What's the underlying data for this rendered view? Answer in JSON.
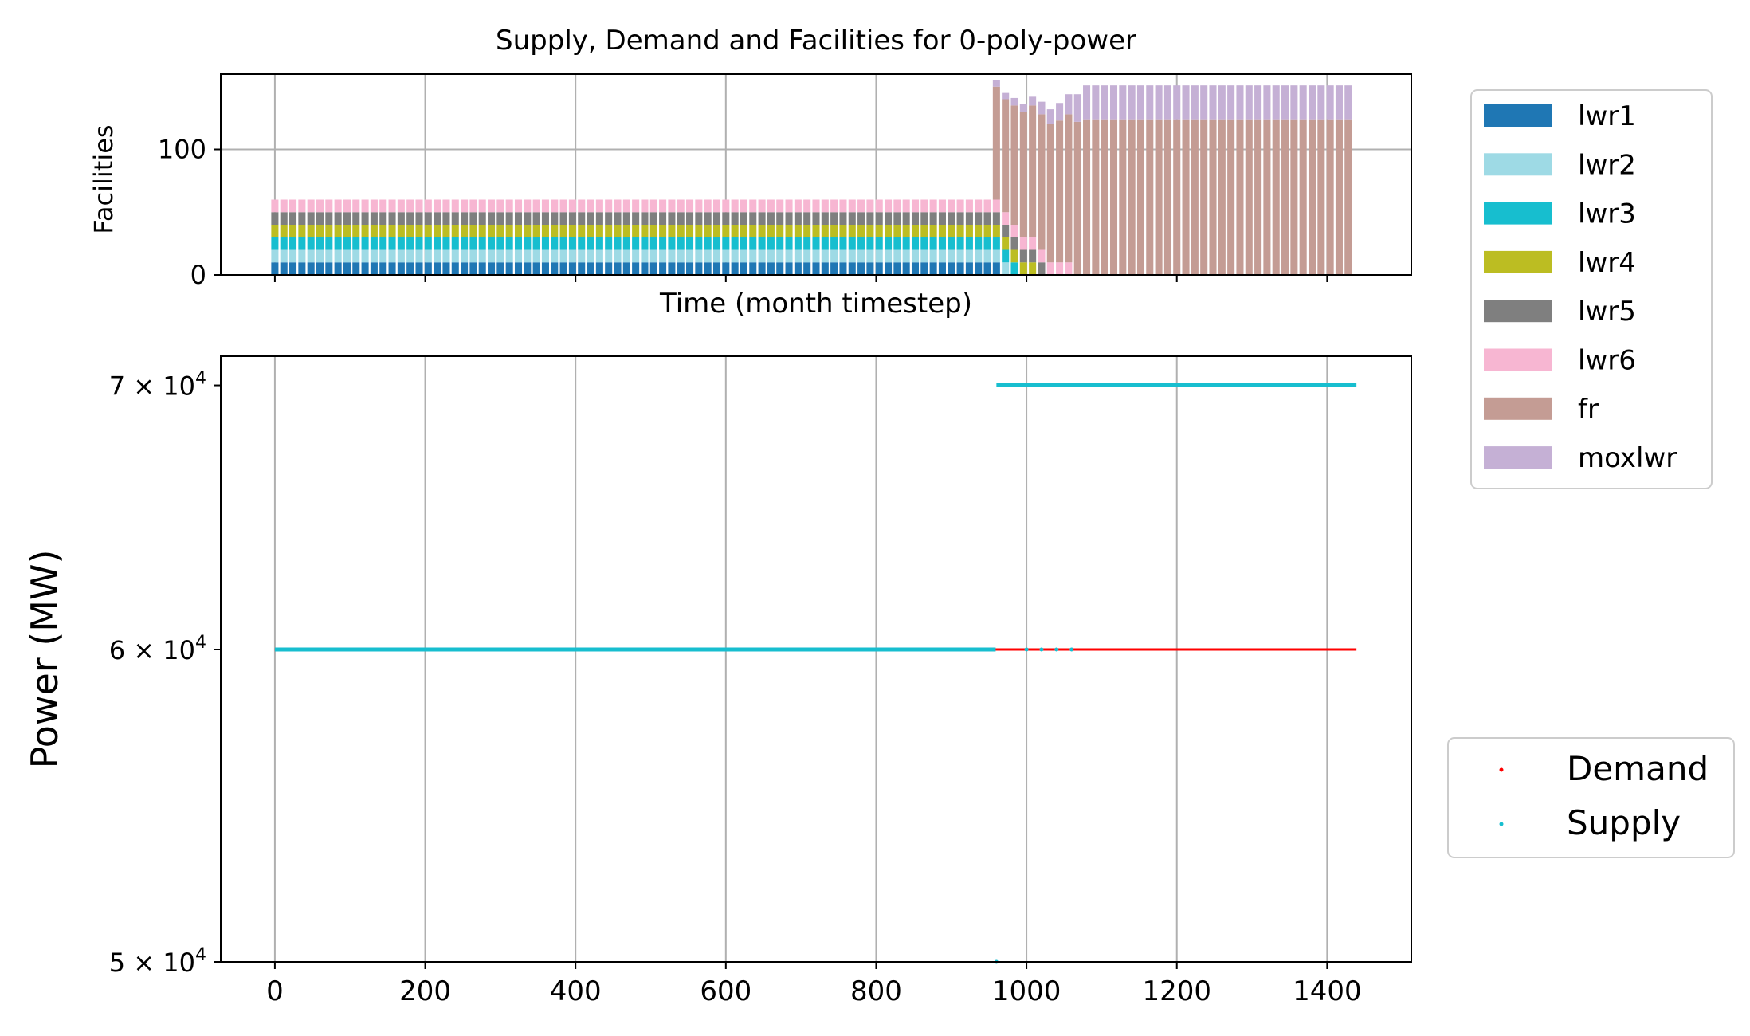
{
  "chart_data": [
    {
      "type": "bar",
      "stacked": true,
      "title": "Supply, Demand and Facilities for 0-poly-power",
      "xlabel": "Time (month timestep)",
      "ylabel": "Facilities",
      "xlim": [
        -72,
        1512
      ],
      "ylim": [
        0,
        160
      ],
      "yticks": [
        0,
        100
      ],
      "ytick_labels": [
        "0",
        "100"
      ],
      "xticks": [
        0,
        200,
        400,
        600,
        800,
        1000,
        1200,
        1400
      ],
      "grid": true,
      "legend_position": "outside-right",
      "x_sampling_note": "bars every 12 months",
      "bar_x_start": 0,
      "bar_x_step": 12,
      "bar_x_end": 1428,
      "series": [
        {
          "name": "lwr1",
          "color": "#1f77b4",
          "points": [
            [
              0,
              10
            ],
            [
              948,
              10
            ],
            [
              960,
              10
            ],
            [
              972,
              0
            ]
          ]
        },
        {
          "name": "lwr2",
          "color": "#9edae5",
          "points": [
            [
              0,
              10
            ],
            [
              948,
              10
            ],
            [
              960,
              10
            ],
            [
              972,
              10
            ],
            [
              984,
              0
            ]
          ]
        },
        {
          "name": "lwr3",
          "color": "#17becf",
          "points": [
            [
              0,
              10
            ],
            [
              948,
              10
            ],
            [
              960,
              10
            ],
            [
              972,
              10
            ],
            [
              984,
              10
            ],
            [
              996,
              0
            ]
          ]
        },
        {
          "name": "lwr4",
          "color": "#bcbd22",
          "points": [
            [
              0,
              10
            ],
            [
              948,
              10
            ],
            [
              960,
              10
            ],
            [
              972,
              10
            ],
            [
              984,
              10
            ],
            [
              996,
              10
            ],
            [
              1008,
              10
            ],
            [
              1020,
              0
            ]
          ]
        },
        {
          "name": "lwr5",
          "color": "#7f7f7f",
          "points": [
            [
              0,
              10
            ],
            [
              948,
              10
            ],
            [
              960,
              10
            ],
            [
              972,
              10
            ],
            [
              984,
              10
            ],
            [
              996,
              10
            ],
            [
              1008,
              10
            ],
            [
              1020,
              10
            ],
            [
              1032,
              0
            ]
          ]
        },
        {
          "name": "lwr6",
          "color": "#f7b6d2",
          "points": [
            [
              0,
              10
            ],
            [
              948,
              10
            ],
            [
              960,
              10
            ],
            [
              972,
              10
            ],
            [
              984,
              10
            ],
            [
              996,
              10
            ],
            [
              1008,
              10
            ],
            [
              1020,
              10
            ],
            [
              1032,
              10
            ],
            [
              1044,
              10
            ],
            [
              1056,
              10
            ],
            [
              1068,
              0
            ]
          ]
        },
        {
          "name": "fr",
          "color": "#c49c94",
          "points": [
            [
              0,
              0
            ],
            [
              948,
              0
            ],
            [
              960,
              90
            ],
            [
              972,
              90
            ],
            [
              984,
              95
            ],
            [
              996,
              100
            ],
            [
              1008,
              105
            ],
            [
              1020,
              108
            ],
            [
              1032,
              110
            ],
            [
              1044,
              113
            ],
            [
              1056,
              118
            ],
            [
              1068,
              122
            ],
            [
              1080,
              124
            ],
            [
              1428,
              124
            ]
          ]
        },
        {
          "name": "moxlwr",
          "color": "#c5b0d5",
          "points": [
            [
              0,
              0
            ],
            [
              948,
              0
            ],
            [
              960,
              5
            ],
            [
              972,
              5
            ],
            [
              984,
              6
            ],
            [
              996,
              6
            ],
            [
              1008,
              7
            ],
            [
              1020,
              10
            ],
            [
              1032,
              12
            ],
            [
              1044,
              14
            ],
            [
              1056,
              16
            ],
            [
              1068,
              22
            ],
            [
              1080,
              27
            ],
            [
              1428,
              27
            ]
          ]
        }
      ]
    },
    {
      "type": "scatter",
      "ylabel": "Power (MW)",
      "xlabel": "",
      "yscale": "log",
      "xlim": [
        -72,
        1512
      ],
      "ylim": [
        50000,
        71200
      ],
      "xticks": [
        0,
        200,
        400,
        600,
        800,
        1000,
        1200,
        1400
      ],
      "xtick_labels": [
        "0",
        "200",
        "400",
        "600",
        "800",
        "1000",
        "1200",
        "1400"
      ],
      "yticks": [
        50000,
        60000,
        70000
      ],
      "ytick_labels": [
        {
          "base": "5",
          "exp": "4"
        },
        {
          "base": "6",
          "exp": "4"
        },
        {
          "base": "7",
          "exp": "4"
        }
      ],
      "grid": true,
      "legend_position": "outside-right",
      "series": [
        {
          "name": "Demand",
          "color": "#ff0000",
          "segments": [
            [
              0,
              1439,
              60000
            ]
          ]
        },
        {
          "name": "Supply",
          "color": "#17becf",
          "segments": [
            [
              0,
              959,
              60000
            ],
            [
              960,
              1439,
              70000
            ]
          ],
          "points": [
            [
              960,
              50000
            ],
            [
              1000,
              60000
            ],
            [
              1020,
              60000
            ],
            [
              1040,
              60000
            ],
            [
              1060,
              60000
            ]
          ]
        }
      ]
    }
  ]
}
